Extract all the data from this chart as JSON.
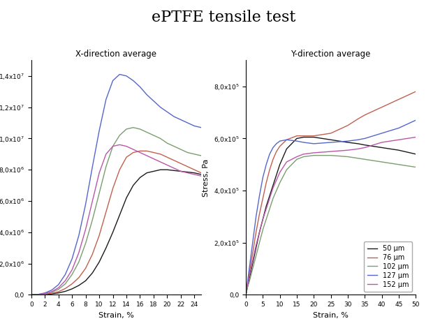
{
  "title": "ePTFE tensile test",
  "title_fontsize": 16,
  "left_title": "X-direction average",
  "right_title": "Y-direction average",
  "xlabel": "Strain, %",
  "ylabel": "Stress, Pa",
  "legend_labels": [
    "50 μm",
    "76 μm",
    "102 μm",
    "127 μm",
    "152 μm"
  ],
  "colors": [
    "#1a1a1a",
    "#c0614e",
    "#7a9e6e",
    "#5566cc",
    "#bb55aa"
  ],
  "background": "#ffffff",
  "left_xlim": [
    0,
    25
  ],
  "left_ylim": [
    0,
    15000000.0
  ],
  "left_xticks": [
    0,
    2,
    4,
    6,
    8,
    10,
    12,
    14,
    16,
    18,
    20,
    22,
    24
  ],
  "left_yticks": [
    0,
    2000000.0,
    4000000.0,
    6000000.0,
    8000000.0,
    10000000.0,
    12000000.0,
    14000000.0
  ],
  "right_xlim": [
    0,
    50
  ],
  "right_ylim": [
    0,
    900000.0
  ],
  "right_xticks": [
    0,
    5,
    10,
    15,
    20,
    25,
    30,
    35,
    40,
    45,
    50
  ],
  "right_yticks": [
    0,
    200000.0,
    400000.0,
    600000.0,
    800000.0
  ],
  "left_curves": {
    "50um": {
      "x": [
        0,
        1,
        2,
        3,
        4,
        5,
        6,
        7,
        8,
        9,
        10,
        11,
        12,
        13,
        14,
        15,
        16,
        17,
        18,
        19,
        20,
        21,
        22,
        23,
        24,
        25
      ],
      "y": [
        0,
        10000.0,
        30000.0,
        60000.0,
        120000.0,
        220000.0,
        380000.0,
        600000.0,
        900000.0,
        1400000.0,
        2100000.0,
        3000000.0,
        4000000.0,
        5100000.0,
        6200000.0,
        7000000.0,
        7500000.0,
        7800000.0,
        7900000.0,
        8000000.0,
        8000000.0,
        7950000.0,
        7900000.0,
        7850000.0,
        7800000.0,
        7700000.0
      ]
    },
    "76um": {
      "x": [
        0,
        1,
        2,
        3,
        4,
        5,
        6,
        7,
        8,
        9,
        10,
        11,
        12,
        13,
        14,
        15,
        16,
        17,
        18,
        19,
        20,
        21,
        22,
        23,
        24,
        25
      ],
      "y": [
        0,
        10000.0,
        40000.0,
        100000.0,
        200000.0,
        400000.0,
        700000.0,
        1100000.0,
        1700000.0,
        2600000.0,
        3800000.0,
        5300000.0,
        6800000.0,
        8000000.0,
        8800000.0,
        9100000.0,
        9200000.0,
        9200000.0,
        9100000.0,
        9000000.0,
        8800000.0,
        8600000.0,
        8400000.0,
        8200000.0,
        8000000.0,
        7800000.0
      ]
    },
    "102um": {
      "x": [
        0,
        1,
        2,
        3,
        4,
        5,
        6,
        7,
        8,
        9,
        10,
        11,
        12,
        13,
        14,
        15,
        16,
        17,
        18,
        19,
        20,
        21,
        22,
        23,
        24,
        25
      ],
      "y": [
        0,
        20000.0,
        70000.0,
        170000.0,
        350000.0,
        700000.0,
        1300000.0,
        2100000.0,
        3300000.0,
        4800000.0,
        6500000.0,
        8200000.0,
        9500000.0,
        10200000.0,
        10600000.0,
        10700000.0,
        10600000.0,
        10400000.0,
        10200000.0,
        10000000.0,
        9700000.0,
        9500000.0,
        9300000.0,
        9100000.0,
        9000000.0,
        8900000.0
      ]
    },
    "127um": {
      "x": [
        0,
        1,
        2,
        3,
        4,
        5,
        6,
        7,
        8,
        9,
        10,
        11,
        12,
        13,
        14,
        15,
        16,
        17,
        18,
        19,
        20,
        21,
        22,
        23,
        24,
        25
      ],
      "y": [
        0,
        30000.0,
        120000.0,
        300000.0,
        650000.0,
        1300000.0,
        2300000.0,
        3800000.0,
        5800000.0,
        8200000.0,
        10500000.0,
        12500000.0,
        13700000.0,
        14100000.0,
        14000000.0,
        13700000.0,
        13300000.0,
        12800000.0,
        12400000.0,
        12000000.0,
        11700000.0,
        11400000.0,
        11200000.0,
        11000000.0,
        10800000.0,
        10700000.0
      ]
    },
    "152um": {
      "x": [
        0,
        1,
        2,
        3,
        4,
        5,
        6,
        7,
        8,
        9,
        10,
        11,
        12,
        13,
        14,
        15,
        16,
        17,
        18,
        19,
        20,
        21,
        22,
        23,
        24,
        25
      ],
      "y": [
        0,
        20000.0,
        80000.0,
        200000.0,
        450000.0,
        900000.0,
        1600000.0,
        2700000.0,
        4200000.0,
        6000000.0,
        7800000.0,
        9000000.0,
        9500000.0,
        9600000.0,
        9500000.0,
        9300000.0,
        9100000.0,
        8900000.0,
        8700000.0,
        8500000.0,
        8300000.0,
        8100000.0,
        7900000.0,
        7800000.0,
        7700000.0,
        7600000.0
      ]
    }
  },
  "right_curves": {
    "50um": {
      "x": [
        0,
        0.5,
        1,
        2,
        3,
        4,
        5,
        6,
        7,
        8,
        9,
        10,
        12,
        15,
        17,
        20,
        25,
        30,
        33,
        35,
        40,
        45,
        50
      ],
      "y": [
        0,
        30000.0,
        60000.0,
        120000.0,
        180000.0,
        240000.0,
        290000.0,
        340000.0,
        380000.0,
        420000.0,
        460000.0,
        500000.0,
        560000.0,
        600000.0,
        605000.0,
        605000.0,
        595000.0,
        585000.0,
        580000.0,
        575000.0,
        565000.0,
        555000.0,
        540000.0
      ]
    },
    "76um": {
      "x": [
        0,
        0.5,
        1,
        2,
        3,
        4,
        5,
        6,
        7,
        8,
        9,
        10,
        12,
        15,
        17,
        20,
        25,
        30,
        33,
        35,
        40,
        45,
        50
      ],
      "y": [
        0,
        40000.0,
        80000.0,
        160000.0,
        240000.0,
        310000.0,
        370000.0,
        430000.0,
        480000.0,
        520000.0,
        550000.0,
        570000.0,
        595000.0,
        610000.0,
        610000.0,
        610000.0,
        620000.0,
        650000.0,
        675000.0,
        690000.0,
        720000.0,
        750000.0,
        780000.0
      ]
    },
    "102um": {
      "x": [
        0,
        0.5,
        1,
        2,
        3,
        4,
        5,
        6,
        7,
        8,
        9,
        10,
        12,
        15,
        17,
        20,
        25,
        30,
        35,
        40,
        45,
        50
      ],
      "y": [
        0,
        30000.0,
        50000.0,
        100000.0,
        150000.0,
        200000.0,
        250000.0,
        290000.0,
        330000.0,
        370000.0,
        400000.0,
        430000.0,
        480000.0,
        520000.0,
        530000.0,
        535000.0,
        535000.0,
        530000.0,
        520000.0,
        510000.0,
        500000.0,
        490000.0
      ]
    },
    "127um": {
      "x": [
        0,
        0.5,
        1,
        2,
        3,
        4,
        5,
        6,
        7,
        8,
        9,
        10,
        12,
        15,
        17,
        20,
        25,
        30,
        33,
        35,
        40,
        45,
        50
      ],
      "y": [
        0,
        50000.0,
        100000.0,
        200000.0,
        300000.0,
        380000.0,
        450000.0,
        500000.0,
        540000.0,
        565000.0,
        580000.0,
        590000.0,
        595000.0,
        590000.0,
        585000.0,
        580000.0,
        585000.0,
        590000.0,
        595000.0,
        600000.0,
        620000.0,
        640000.0,
        670000.0
      ]
    },
    "152um": {
      "x": [
        0,
        0.5,
        1,
        2,
        3,
        4,
        5,
        6,
        7,
        8,
        9,
        10,
        12,
        15,
        17,
        20,
        25,
        30,
        33,
        35,
        40,
        45,
        50
      ],
      "y": [
        0,
        40000.0,
        70000.0,
        130000.0,
        190000.0,
        240000.0,
        290000.0,
        330000.0,
        370000.0,
        410000.0,
        440000.0,
        470000.0,
        510000.0,
        530000.0,
        540000.0,
        545000.0,
        550000.0,
        555000.0,
        560000.0,
        565000.0,
        585000.0,
        595000.0,
        605000.0
      ]
    }
  }
}
